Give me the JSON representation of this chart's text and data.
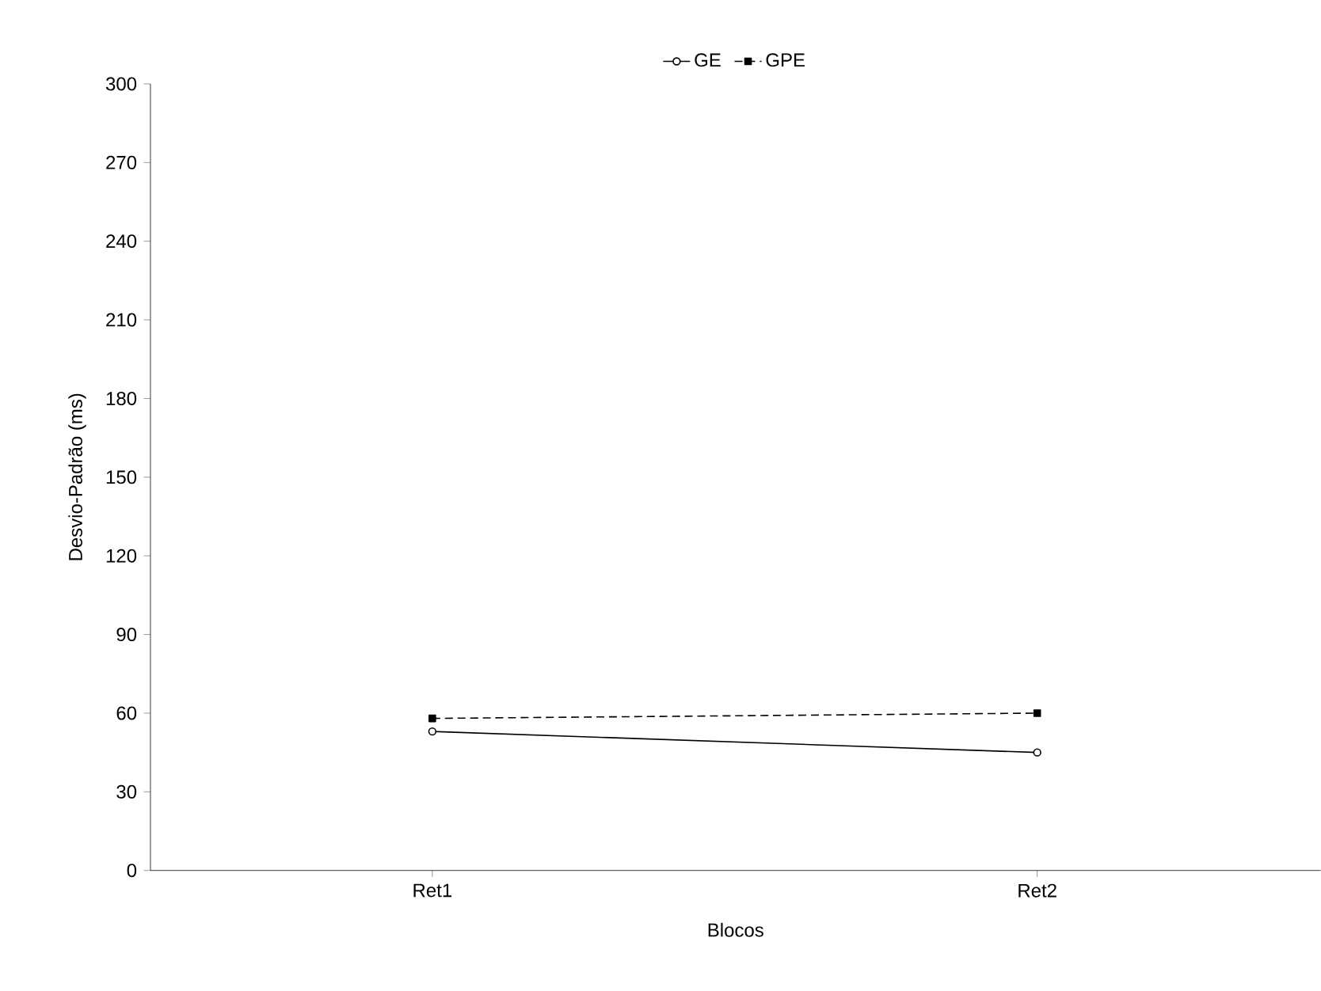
{
  "chart_data": {
    "type": "line",
    "xlabel": "Blocos",
    "ylabel": "Desvio-Padrão (ms)",
    "categories": [
      "Ret1",
      "Ret2"
    ],
    "series": [
      {
        "name": "GE",
        "color": "#000000",
        "values": [
          53,
          45
        ],
        "marker": "circle",
        "line_style": "solid"
      },
      {
        "name": "GPE",
        "color": "#000000",
        "values": [
          58,
          60
        ],
        "marker": "square",
        "line_style": "dashed"
      }
    ],
    "ylim": [
      0,
      300
    ],
    "yticks": [
      0,
      30,
      60,
      90,
      120,
      150,
      180,
      210,
      240,
      270,
      300
    ],
    "grid": false,
    "legend": "top"
  }
}
